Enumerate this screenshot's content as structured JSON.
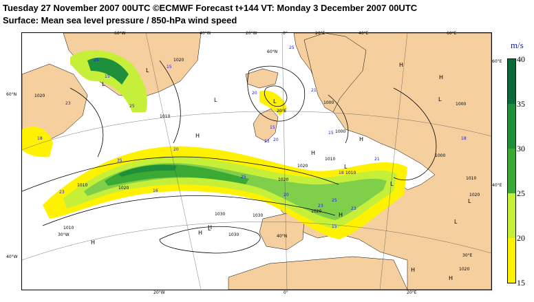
{
  "header": {
    "line1": "Tuesday 27 November 2007 00UTC ©ECMWF Forecast t+144 VT: Monday 3 December 2007 00UTC",
    "line2": "Surface: Mean sea level pressure / 850-hPa wind speed"
  },
  "legend": {
    "unit": "m/s",
    "ticks": [
      "40",
      "35",
      "30",
      "25",
      "20",
      "15"
    ],
    "colors": [
      "#0a6b3a",
      "#1e8f3a",
      "#3aaa35",
      "#7fcf4a",
      "#c6ef3a",
      "#fff200"
    ]
  },
  "colors": {
    "land": "#f6cf9e",
    "ocean": "#ffffff",
    "isobar": "#000000",
    "wind_label": "#1b1bd0"
  },
  "graticule_labels": {
    "top": [
      "60°W",
      "40°W",
      "20°W",
      "0°",
      "20°E",
      "40°E",
      "60°E"
    ],
    "bottom": [
      "20°W",
      "0°",
      "20°E"
    ],
    "left": [
      "60°N",
      "40°W"
    ],
    "right": [
      "60°E",
      "40°E"
    ],
    "inner": [
      "60°N",
      "40°N",
      "30°W",
      "20°E",
      "30°E"
    ]
  },
  "pressure_centres": [
    "L",
    "L",
    "L",
    "L",
    "L",
    "L",
    "L",
    "L",
    "L",
    "L",
    "H",
    "H",
    "H",
    "H",
    "H",
    "H",
    "H",
    "H",
    "H",
    "H",
    "H"
  ],
  "isobar_labels": [
    "1020",
    "1010",
    "1000",
    "1020",
    "1010",
    "1030",
    "1020",
    "1010",
    "1020",
    "1030",
    "1000",
    "1010",
    "1020",
    "1000",
    "1010",
    "1020",
    "1030",
    "1020",
    "1020",
    "1010",
    "1000"
  ],
  "wind_labels": [
    "25",
    "15",
    "18",
    "23",
    "25",
    "35",
    "20",
    "25",
    "15",
    "23",
    "16",
    "20",
    "25",
    "21",
    "15",
    "18",
    "15",
    "23",
    "20",
    "20",
    "23",
    "21",
    "25",
    "15",
    "18",
    "23"
  ]
}
